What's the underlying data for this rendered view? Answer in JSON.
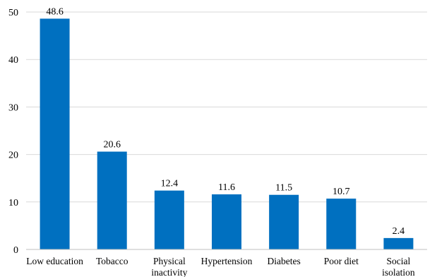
{
  "chart_data": {
    "type": "bar",
    "title": "",
    "xlabel": "",
    "ylabel": "",
    "categories": [
      [
        "Low education"
      ],
      [
        "Tobacco"
      ],
      [
        "Physical",
        "inactivity"
      ],
      [
        "Hypertension"
      ],
      [
        "Diabetes"
      ],
      [
        "Poor diet"
      ],
      [
        "Social",
        "isolation"
      ]
    ],
    "values": [
      48.6,
      20.6,
      12.4,
      11.6,
      11.5,
      10.7,
      2.4
    ],
    "value_labels": [
      "48.6",
      "20.6",
      "12.4",
      "11.6",
      "11.5",
      "10.7",
      "2.4"
    ],
    "ylim": [
      0,
      50
    ],
    "yticks": [
      0,
      10,
      20,
      30,
      40,
      50
    ],
    "grid": true,
    "legend": "none",
    "bar_color": "#0070c0"
  }
}
